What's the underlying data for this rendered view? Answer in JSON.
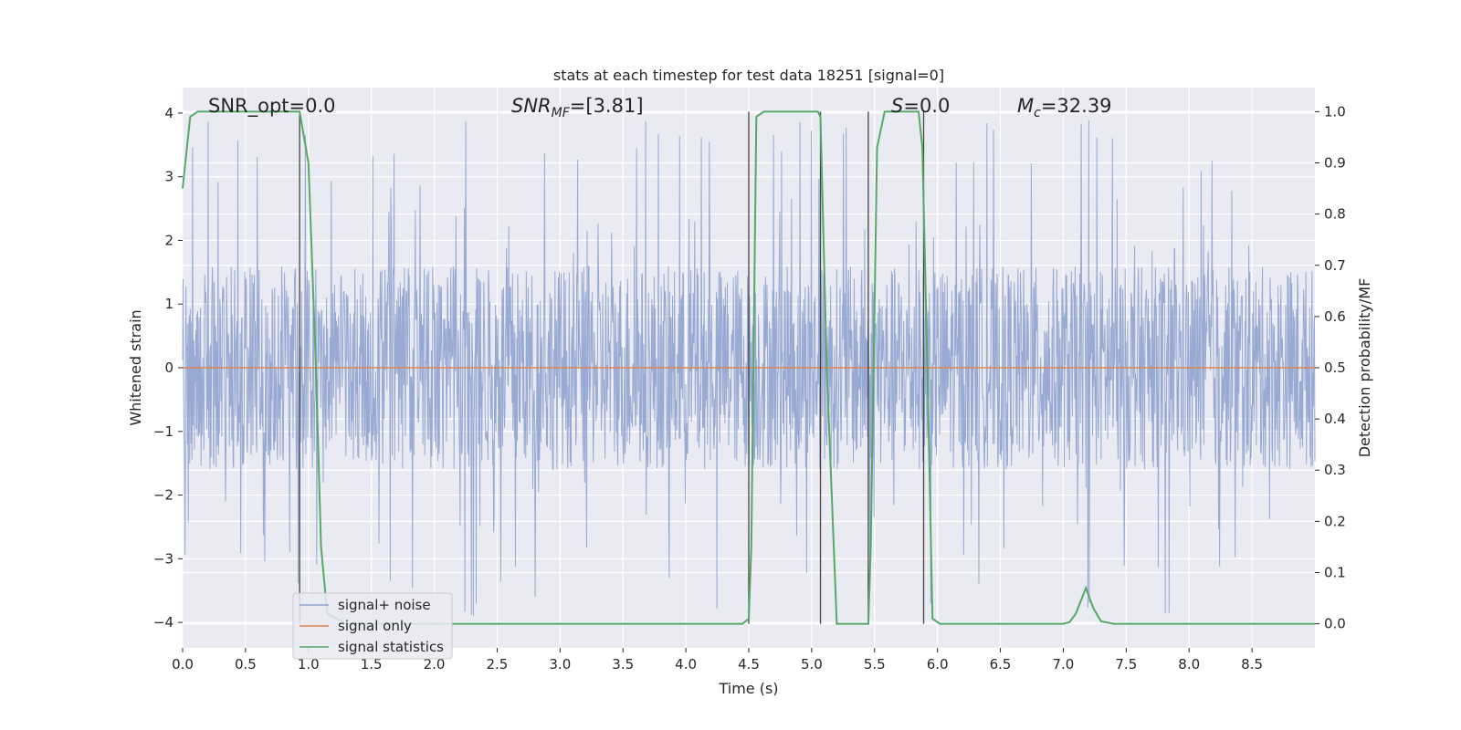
{
  "chart_data": {
    "type": "line",
    "title": "stats at each timestep for test data 18251 [signal=0]",
    "xlabel": "Time (s)",
    "ylabel": "Whitened strain",
    "y2label": "Detection probability/MF",
    "xlim": [
      0,
      9.0
    ],
    "ylim": [
      -4.4,
      4.4
    ],
    "y2lim": [
      -0.047,
      1.047
    ],
    "xticks": [
      0.0,
      0.5,
      1.0,
      1.5,
      2.0,
      2.5,
      3.0,
      3.5,
      4.0,
      4.5,
      5.0,
      5.5,
      6.0,
      6.5,
      7.0,
      7.5,
      8.0,
      8.5
    ],
    "xtick_labels": [
      "0.0",
      "0.5",
      "1.0",
      "1.5",
      "2.0",
      "2.5",
      "3.0",
      "3.5",
      "4.0",
      "4.5",
      "5.0",
      "5.5",
      "6.0",
      "6.5",
      "7.0",
      "7.5",
      "8.0",
      "8.5"
    ],
    "yticks": [
      -4,
      -3,
      -2,
      -1,
      0,
      1,
      2,
      3,
      4
    ],
    "ytick_labels": [
      "−4",
      "−3",
      "−2",
      "−1",
      "0",
      "1",
      "2",
      "3",
      "4"
    ],
    "y2ticks": [
      0.0,
      0.1,
      0.2,
      0.3,
      0.4,
      0.5,
      0.6,
      0.7,
      0.8,
      0.9,
      1.0
    ],
    "y2tick_labels": [
      "0.0",
      "0.1",
      "0.2",
      "0.3",
      "0.4",
      "0.5",
      "0.6",
      "0.7",
      "0.8",
      "0.9",
      "1.0"
    ],
    "grid": true,
    "legend_position": "lower-left",
    "annotations": {
      "snr_opt": "SNR_opt=0.0",
      "snr_mf_main": "SNR",
      "snr_mf_sub": "MF",
      "snr_mf_tail": "=[3.81]",
      "s_main": "S",
      "s_tail": "=0.0",
      "mc_main": "M",
      "mc_sub": "c",
      "mc_tail": "=32.39"
    },
    "series": [
      {
        "name": "signal+ noise",
        "color": "#8fa3cf",
        "axis": "left",
        "noise_amplitude": 1.6,
        "spike_max": 4.0
      },
      {
        "name": "signal only",
        "color": "#dd8452",
        "axis": "left",
        "x": [
          0,
          9.0
        ],
        "y": [
          0,
          0
        ]
      },
      {
        "name": "signal statistics",
        "color": "#55a868",
        "axis": "right",
        "x": [
          0.0,
          0.06,
          0.12,
          0.2,
          0.4,
          0.6,
          0.8,
          0.93,
          1.0,
          1.06,
          1.1,
          1.15,
          1.3,
          2.0,
          3.0,
          4.0,
          4.45,
          4.5,
          4.52,
          4.56,
          4.62,
          4.75,
          5.0,
          5.05,
          5.07,
          5.12,
          5.2,
          5.3,
          5.45,
          5.47,
          5.52,
          5.58,
          5.65,
          5.85,
          5.88,
          5.92,
          5.96,
          6.02,
          6.5,
          7.0,
          7.05,
          7.1,
          7.18,
          7.24,
          7.3,
          7.4,
          8.0,
          9.0
        ],
        "y": [
          0.85,
          0.99,
          1.0,
          1.0,
          1.0,
          1.0,
          1.0,
          1.0,
          0.9,
          0.5,
          0.15,
          0.02,
          0.0,
          0.0,
          0.0,
          0.0,
          0.0,
          0.01,
          0.15,
          0.99,
          1.0,
          1.0,
          1.0,
          1.0,
          0.99,
          0.5,
          0.0,
          0.0,
          0.0,
          0.15,
          0.93,
          1.0,
          1.0,
          1.0,
          0.93,
          0.5,
          0.01,
          0.0,
          0.0,
          0.0,
          0.003,
          0.02,
          0.07,
          0.03,
          0.005,
          0.0,
          0.0,
          0.0
        ]
      }
    ],
    "vlines": {
      "color": "#444444",
      "x": [
        0.93,
        4.5,
        5.07,
        5.45,
        5.89
      ],
      "y_from": 0.0,
      "y_to": 1.0
    }
  }
}
